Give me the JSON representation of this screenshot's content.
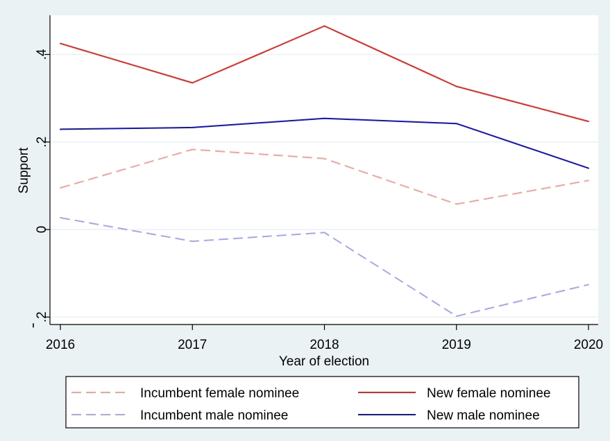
{
  "colors": {
    "background": "#eaf2f3",
    "plot_area": "#ffffff",
    "grid": "#eaf2f3",
    "new_female": "#e8261f",
    "new_male": "#1010c8",
    "incumbent_female": "#f4a29c",
    "incumbent_male": "#a6a6f0"
  },
  "chart_data": {
    "type": "line",
    "title": "",
    "xlabel": "Year of election",
    "ylabel": "Support",
    "x": [
      2016,
      2017,
      2018,
      2019,
      2020
    ],
    "x_tick_labels": [
      "2016",
      "2017",
      "2018",
      "2019",
      "2020"
    ],
    "y_ticks": [
      -0.2,
      0,
      0.2,
      0.4
    ],
    "y_tick_labels": [
      ".2",
      "0",
      ".2",
      ".4"
    ],
    "y_tick_minus_marks": [
      true,
      false,
      false,
      false
    ],
    "ylim": [
      -0.2,
      0.48
    ],
    "grid": true,
    "legend_position": "bottom",
    "series": [
      {
        "name": "Incumbent female nominee",
        "color": "#f4a29c",
        "dash": "dashed",
        "values": [
          0.095,
          0.183,
          0.162,
          0.058,
          0.112
        ]
      },
      {
        "name": "New female nominee",
        "color": "#e8261f",
        "dash": "solid",
        "values": [
          0.425,
          0.335,
          0.465,
          0.327,
          0.247
        ]
      },
      {
        "name": "Incumbent male nominee",
        "color": "#a6a6f0",
        "dash": "dashed",
        "values": [
          0.027,
          -0.027,
          -0.007,
          -0.198,
          -0.126
        ]
      },
      {
        "name": "New male nominee",
        "color": "#1010c8",
        "dash": "solid",
        "values": [
          0.229,
          0.233,
          0.254,
          0.242,
          0.14
        ]
      }
    ]
  }
}
